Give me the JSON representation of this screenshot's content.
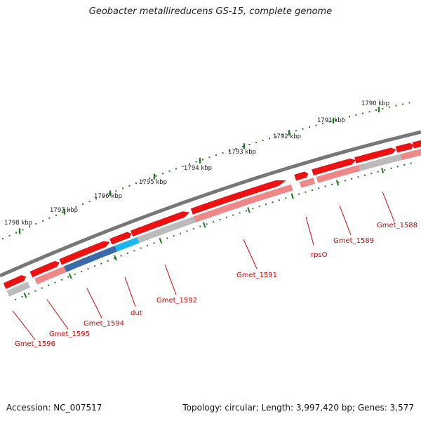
{
  "title": "Geobacter metallireducens GS-15, complete genome",
  "footer": {
    "accession": "Accession: NC_007517",
    "stats": "Topology: circular; Length: 3,997,420 bp; Genes: 3,577"
  },
  "colors": {
    "backbone": "#777777",
    "gene_forward": "#ee1111",
    "gene_faded": "#ee8888",
    "gene_gray": "#bbbbbb",
    "gene_dark_blue": "#3a6aa8",
    "gene_light_blue": "#19b6ee",
    "tick": "#1f7a1f",
    "label": "#d40000"
  },
  "kbp_scale": [
    "1790 kbp",
    "1791 kbp",
    "1792 kbp",
    "1793 kbp",
    "1794 kbp",
    "1795 kbp",
    "1796 kbp",
    "1797 kbp",
    "1798 kbp"
  ],
  "genes": [
    "Gmet_1588",
    "Gmet_1589",
    "rpsO",
    "Gmet_1591",
    "Gmet_1592",
    "dut",
    "Gmet_1594",
    "Gmet_1595",
    "Gmet_1596"
  ]
}
